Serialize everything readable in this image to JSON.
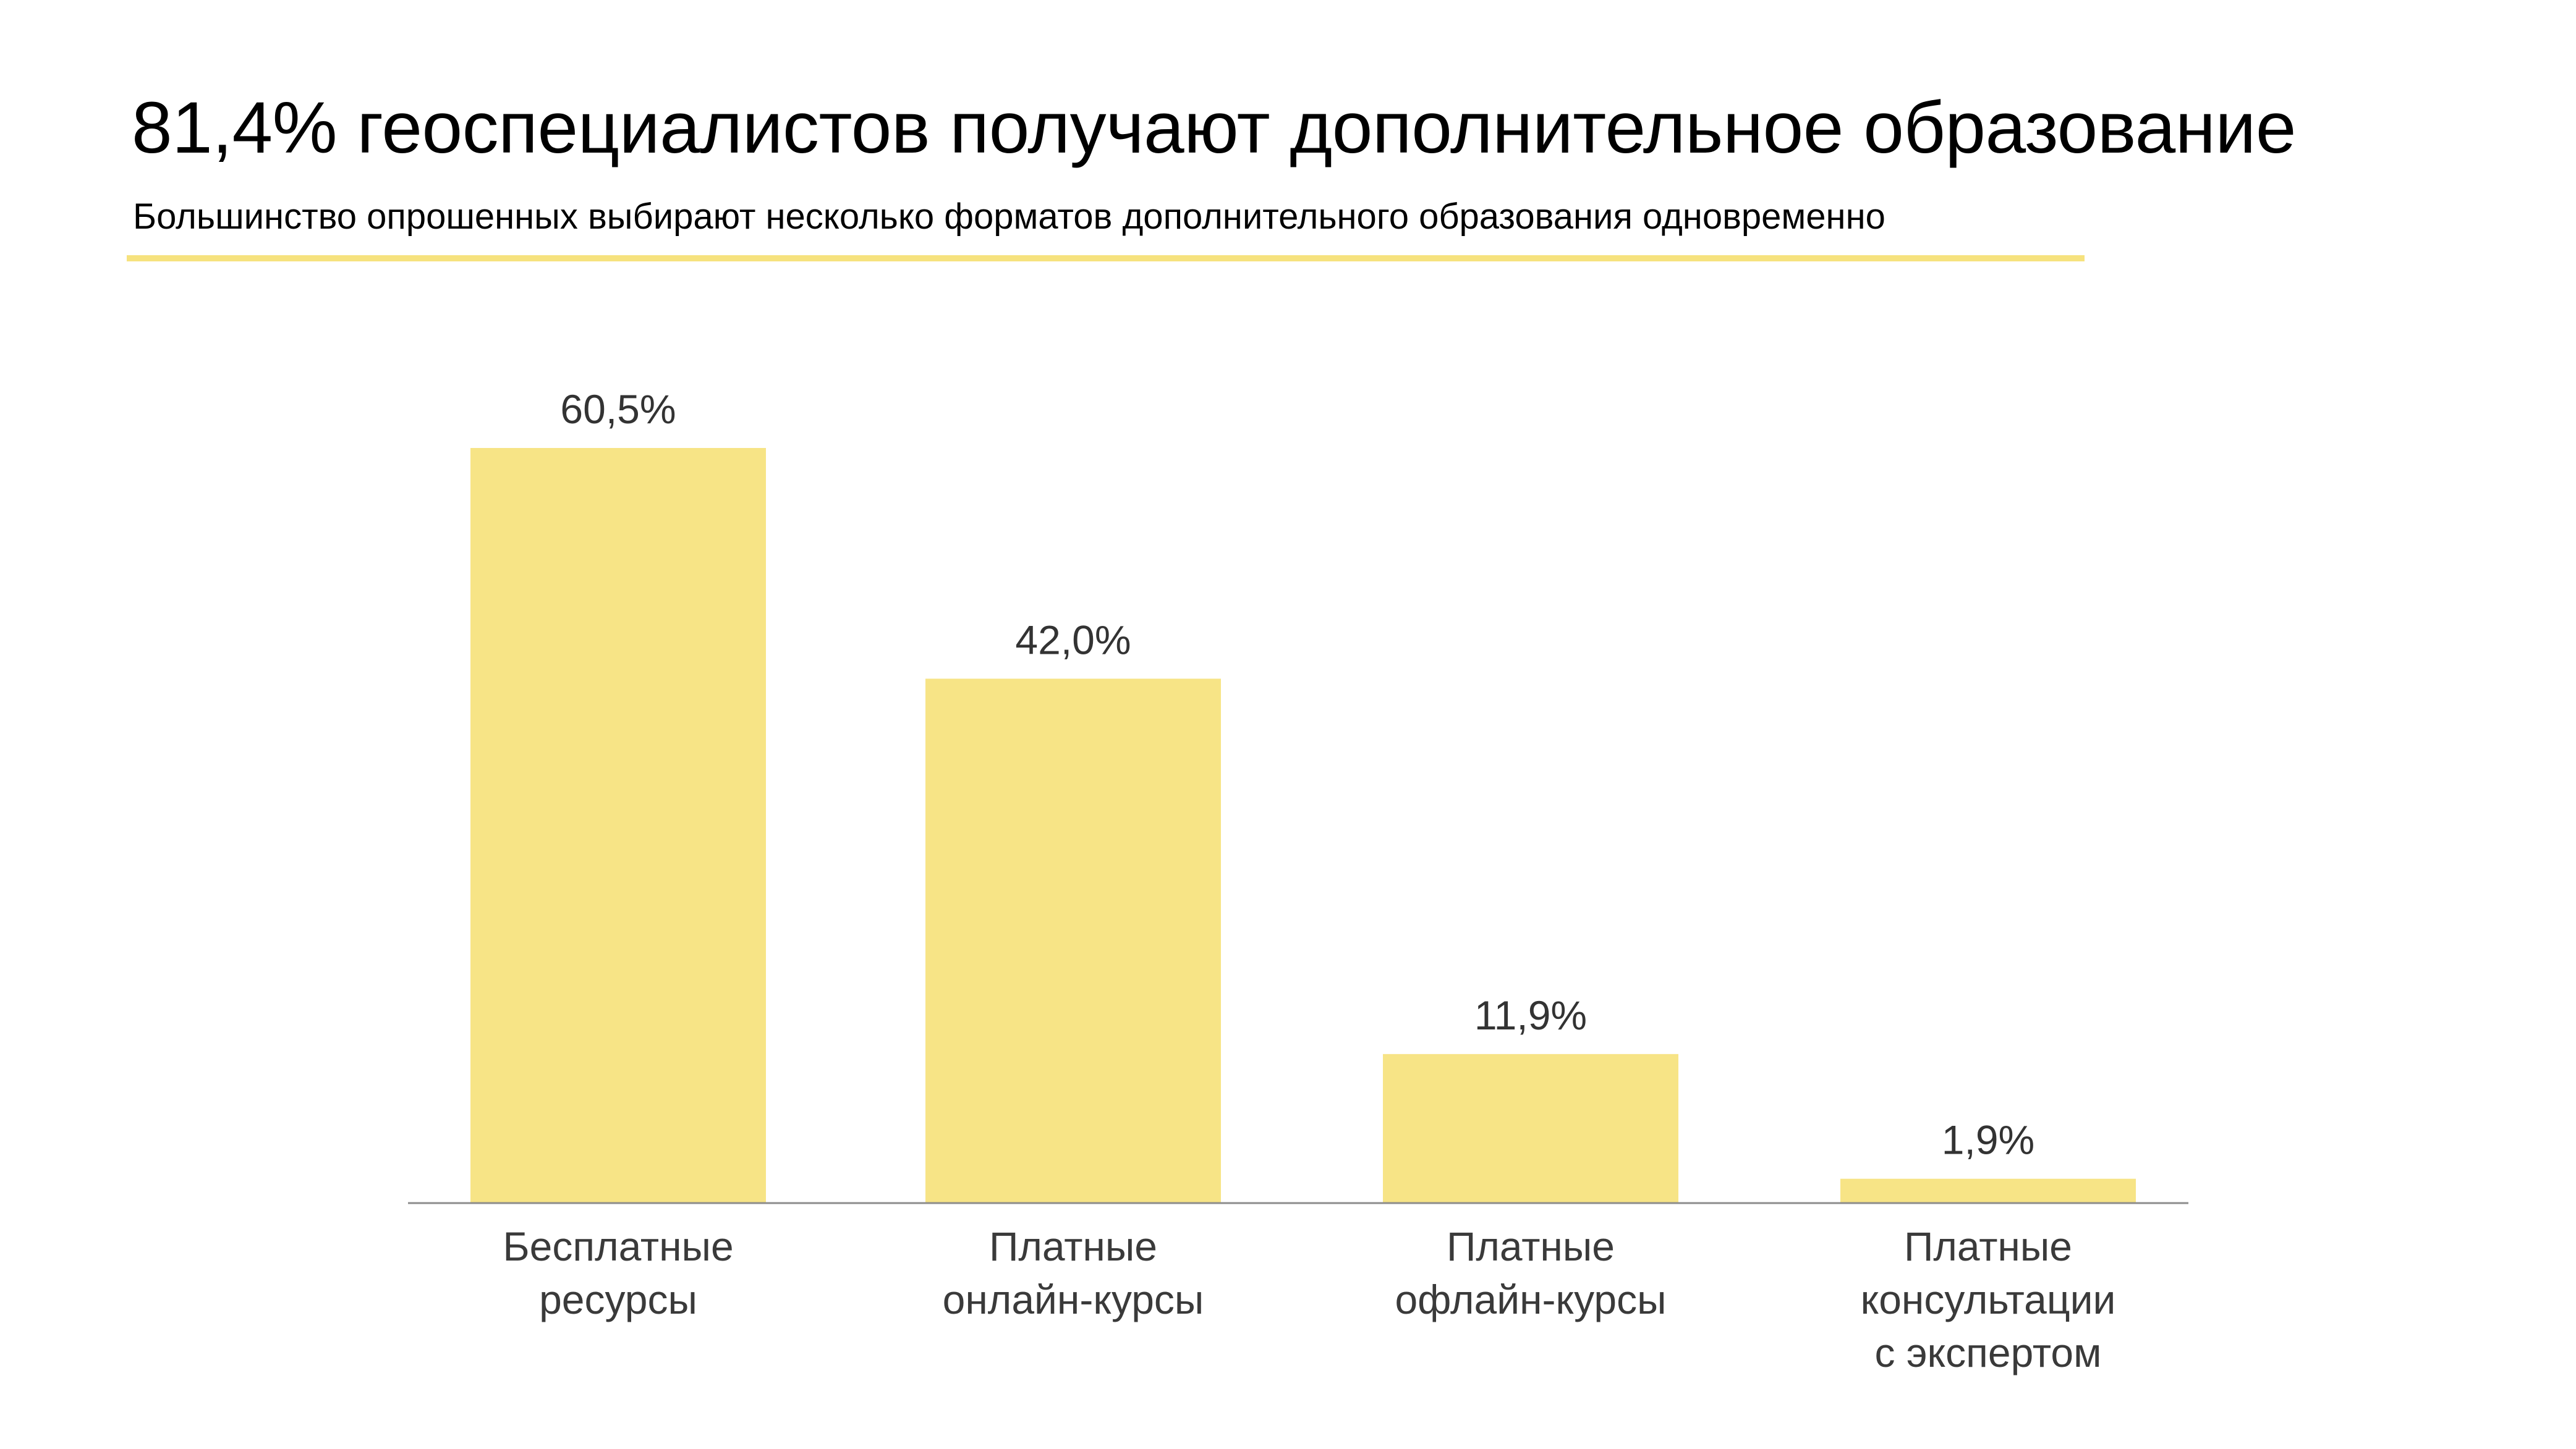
{
  "title": "81,4% геоспециалистов получают дополнительное образование",
  "subtitle": "Большинство опрошенных выбирают несколько форматов дополнительного образования одновременно",
  "colors": {
    "bar": "#f7e486",
    "accent_rule": "#f6e27e",
    "axis": "#8c8c8c"
  },
  "chart_data": {
    "type": "bar",
    "categories": [
      [
        "Бесплатные",
        "ресурсы"
      ],
      [
        "Платные",
        "онлайн-курсы"
      ],
      [
        "Платные",
        "офлайн-курсы"
      ],
      [
        "Платные",
        "консультации",
        "с экспертом"
      ]
    ],
    "values": [
      60.5,
      42.0,
      11.9,
      1.9
    ],
    "value_labels": [
      "60,5%",
      "42,0%",
      "11,9%",
      "1,9%"
    ],
    "ylim": [
      0,
      60.5
    ],
    "grid": false,
    "legend": "none"
  }
}
